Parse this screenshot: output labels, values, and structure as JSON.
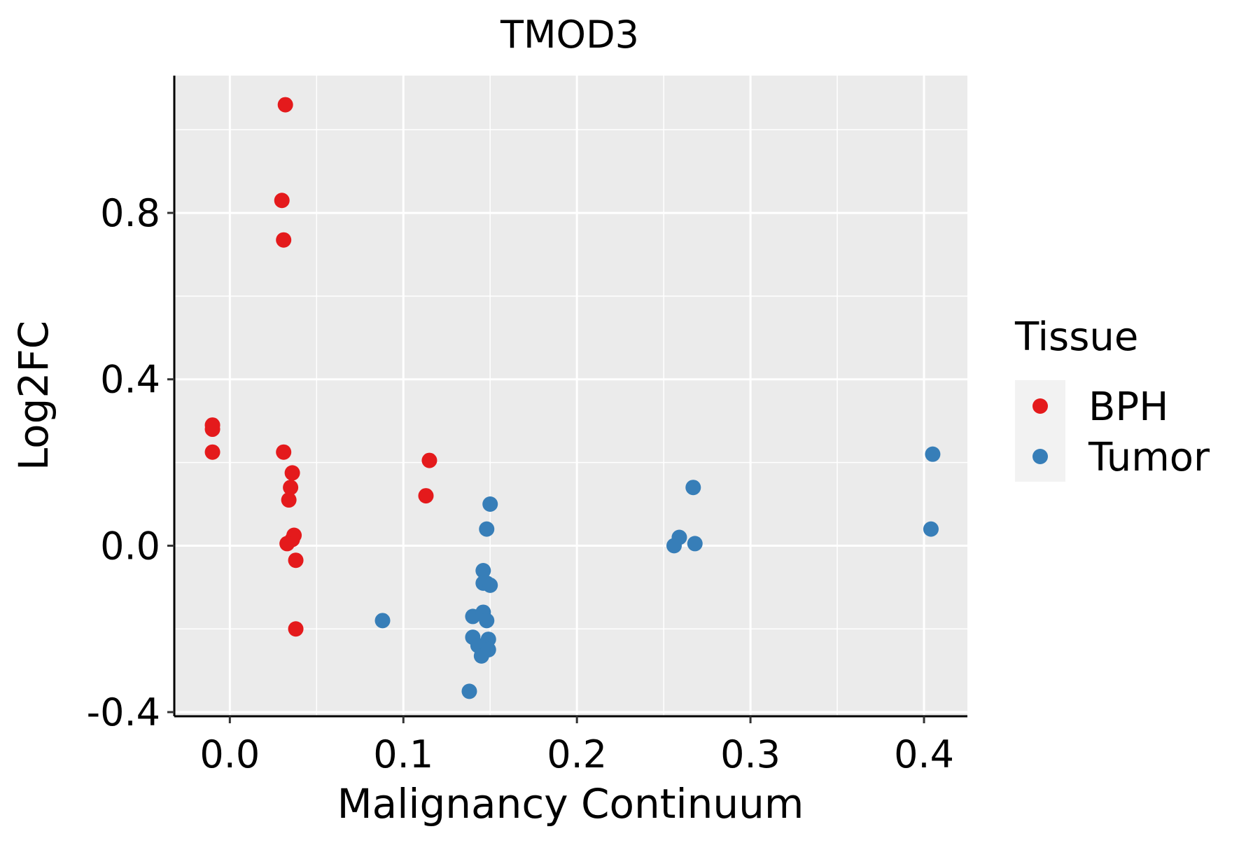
{
  "chart_data": {
    "type": "scatter",
    "title": "TMOD3",
    "xlabel": "Malignancy Continuum",
    "ylabel": "Log2FC",
    "xlim": [
      -0.032,
      0.425
    ],
    "ylim": [
      -0.41,
      1.13
    ],
    "x_ticks": [
      0.0,
      0.1,
      0.2,
      0.3,
      0.4
    ],
    "x_tick_labels": [
      "0.0",
      "0.1",
      "0.2",
      "0.3",
      "0.4"
    ],
    "y_ticks": [
      -0.4,
      0.0,
      0.4,
      0.8
    ],
    "y_tick_labels": [
      "-0.4",
      "0.0",
      "0.4",
      "0.8"
    ],
    "grid": true,
    "legend": {
      "title": "Tissue",
      "position": "right",
      "entries": [
        "BPH",
        "Tumor"
      ]
    },
    "series": [
      {
        "name": "BPH",
        "color": "#E41A1C",
        "points": [
          [
            -0.01,
            0.29
          ],
          [
            -0.01,
            0.28
          ],
          [
            -0.01,
            0.225
          ],
          [
            0.032,
            1.06
          ],
          [
            0.03,
            0.83
          ],
          [
            0.031,
            0.735
          ],
          [
            0.031,
            0.225
          ],
          [
            0.036,
            0.175
          ],
          [
            0.035,
            0.14
          ],
          [
            0.034,
            0.11
          ],
          [
            0.037,
            0.025
          ],
          [
            0.036,
            0.015
          ],
          [
            0.033,
            0.005
          ],
          [
            0.038,
            -0.035
          ],
          [
            0.038,
            -0.2
          ],
          [
            0.115,
            0.205
          ],
          [
            0.113,
            0.12
          ]
        ]
      },
      {
        "name": "Tumor",
        "color": "#377EB8",
        "points": [
          [
            0.088,
            -0.18
          ],
          [
            0.15,
            0.1
          ],
          [
            0.148,
            0.04
          ],
          [
            0.146,
            -0.06
          ],
          [
            0.146,
            -0.09
          ],
          [
            0.148,
            -0.09
          ],
          [
            0.15,
            -0.095
          ],
          [
            0.14,
            -0.17
          ],
          [
            0.146,
            -0.16
          ],
          [
            0.148,
            -0.18
          ],
          [
            0.14,
            -0.22
          ],
          [
            0.143,
            -0.24
          ],
          [
            0.149,
            -0.225
          ],
          [
            0.145,
            -0.265
          ],
          [
            0.149,
            -0.25
          ],
          [
            0.138,
            -0.35
          ],
          [
            0.267,
            0.14
          ],
          [
            0.259,
            0.02
          ],
          [
            0.256,
            0.0
          ],
          [
            0.268,
            0.005
          ],
          [
            0.405,
            0.22
          ],
          [
            0.404,
            0.04
          ]
        ]
      }
    ]
  }
}
